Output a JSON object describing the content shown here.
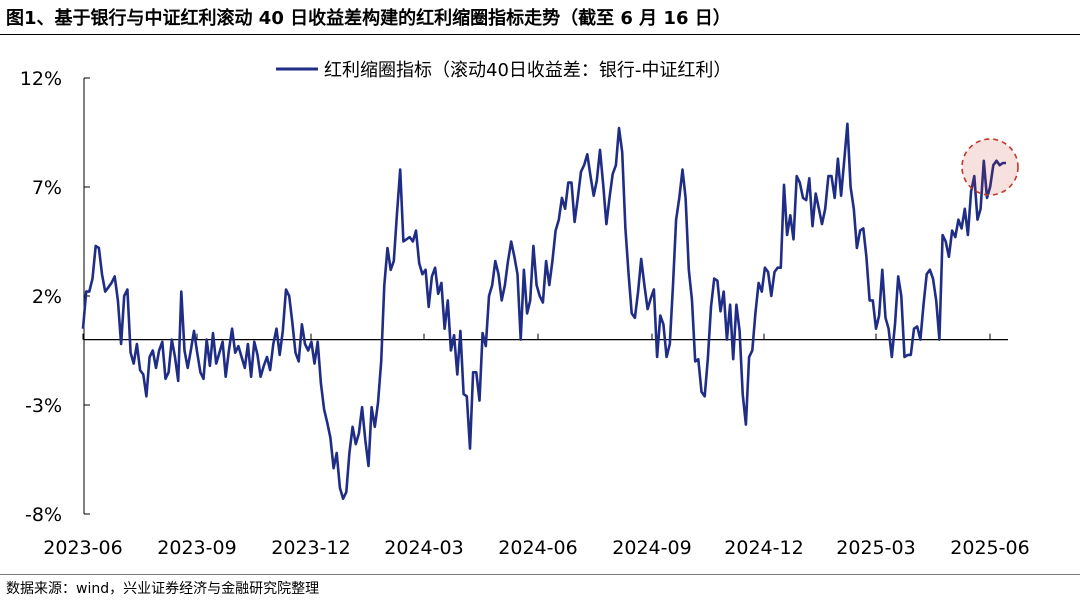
{
  "title": "图1、基于银行与中证红利滚动 40 日收益差构建的红利缩圈指标走势（截至 6 月 16 日）",
  "source": "数据来源：wind，兴业证券经济与金融研究院整理",
  "chart_data": {
    "type": "line",
    "title": "图1、基于银行与中证红利滚动 40 日收益差构建的红利缩圈指标走势（截至 6 月 16 日）",
    "xlabel": "",
    "ylabel": "",
    "ylim": [
      -8,
      12
    ],
    "y_ticks": [
      12,
      7,
      2,
      -3,
      -8
    ],
    "y_tick_labels": [
      "12%",
      "7%",
      "2%",
      "-3%",
      "-8%"
    ],
    "x_tick_labels": [
      "2023-06",
      "2023-09",
      "2023-12",
      "2024-03",
      "2024-06",
      "2024-09",
      "2024-12",
      "2025-03",
      "2025-06"
    ],
    "grid": false,
    "legend": "top-center",
    "line_color": "#1f2d86",
    "highlight_color": "#c0392b",
    "series": [
      {
        "name": "红利缩圈指标（滚动40日收益差：银行-中证红利）",
        "unit": "%",
        "x_start": "2023-06",
        "x_end": "2025-06-16",
        "values": [
          0.5,
          2.2,
          2.2,
          2.8,
          4.3,
          4.2,
          3.0,
          2.2,
          2.4,
          2.6,
          2.9,
          1.8,
          -0.2,
          2.0,
          2.3,
          -0.6,
          -1.1,
          -0.2,
          -1.4,
          -1.6,
          -2.6,
          -0.8,
          -0.5,
          -1.3,
          -0.5,
          -0.1,
          -1.8,
          -1.5,
          0.0,
          -0.8,
          -1.9,
          2.2,
          -0.5,
          -1.3,
          -0.5,
          0.4,
          -0.6,
          -1.5,
          -1.8,
          0.0,
          -1.2,
          0.3,
          -1.1,
          -0.6,
          -0.1,
          -1.7,
          -0.5,
          0.5,
          -0.6,
          -0.3,
          -0.8,
          -1.3,
          -0.2,
          -1.7,
          -0.1,
          -0.7,
          -1.7,
          -1.2,
          -0.8,
          -1.4,
          -0.2,
          0.5,
          -0.7,
          0.4,
          2.3,
          2.0,
          0.8,
          -0.6,
          -1.0,
          0.7,
          -0.2,
          -0.5,
          -0.1,
          -1.1,
          -0.1,
          -2.0,
          -3.2,
          -3.8,
          -4.5,
          -5.9,
          -5.2,
          -6.8,
          -7.3,
          -7.0,
          -5.2,
          -4.0,
          -4.8,
          -4.3,
          -3.1,
          -4.6,
          -5.8,
          -3.1,
          -4.0,
          -2.9,
          -1.0,
          2.5,
          4.2,
          3.2,
          3.6,
          5.8,
          7.8,
          4.5,
          4.6,
          4.7,
          4.5,
          5.0,
          3.5,
          3.0,
          3.2,
          1.5,
          2.9,
          3.3,
          2.1,
          2.6,
          0.5,
          1.8,
          -0.5,
          0.2,
          -1.6,
          0.4,
          -2.5,
          -2.6,
          -5.0,
          -1.5,
          -1.5,
          -2.8,
          0.3,
          -0.3,
          2.0,
          2.5,
          3.6,
          3.0,
          1.8,
          2.5,
          3.6,
          4.5,
          3.8,
          3.0,
          0.0,
          3.2,
          1.2,
          1.8,
          4.3,
          2.5,
          2.0,
          1.7,
          3.6,
          2.5,
          3.6,
          5.0,
          5.5,
          6.5,
          6.0,
          7.2,
          7.2,
          5.4,
          6.5,
          7.7,
          8.0,
          8.5,
          7.5,
          6.6,
          7.3,
          8.7,
          7.1,
          5.3,
          6.5,
          7.6,
          8.0,
          9.7,
          8.6,
          5.1,
          3.0,
          1.2,
          1.0,
          2.2,
          3.7,
          2.5,
          1.4,
          1.9,
          2.3,
          -0.8,
          1.1,
          0.7,
          -0.8,
          -0.2,
          2.5,
          5.5,
          6.5,
          7.8,
          6.5,
          3.2,
          1.8,
          -1.0,
          -0.9,
          -2.4,
          -2.6,
          -0.9,
          1.5,
          2.8,
          2.7,
          1.3,
          2.2,
          0.0,
          1.6,
          -0.9,
          1.6,
          0.4,
          -2.5,
          -3.9,
          -0.8,
          -0.5,
          1.2,
          2.6,
          2.2,
          3.3,
          3.1,
          2.0,
          3.1,
          3.3,
          3.3,
          7.1,
          4.8,
          5.7,
          4.6,
          7.5,
          7.2,
          6.5,
          6.4,
          7.4,
          5.2,
          6.7,
          6.0,
          5.3,
          6.0,
          7.5,
          7.5,
          6.5,
          8.3,
          6.6,
          8.2,
          9.9,
          7.0,
          6.0,
          4.2,
          5.0,
          5.1,
          3.8,
          1.8,
          1.8,
          0.5,
          1.1,
          3.2,
          1.0,
          0.5,
          -0.8,
          0.7,
          2.9,
          2.0,
          -0.8,
          -0.7,
          -0.7,
          0.5,
          0.6,
          0.0,
          1.6,
          3.0,
          3.2,
          2.8,
          1.8,
          0.0,
          4.8,
          4.5,
          3.8,
          5.0,
          4.7,
          5.5,
          5.1,
          6.0,
          4.8,
          6.8,
          7.5,
          5.5,
          6.0,
          8.2,
          6.5,
          7.0,
          8.0,
          8.2,
          8.0,
          8.1,
          8.1
        ]
      }
    ]
  }
}
